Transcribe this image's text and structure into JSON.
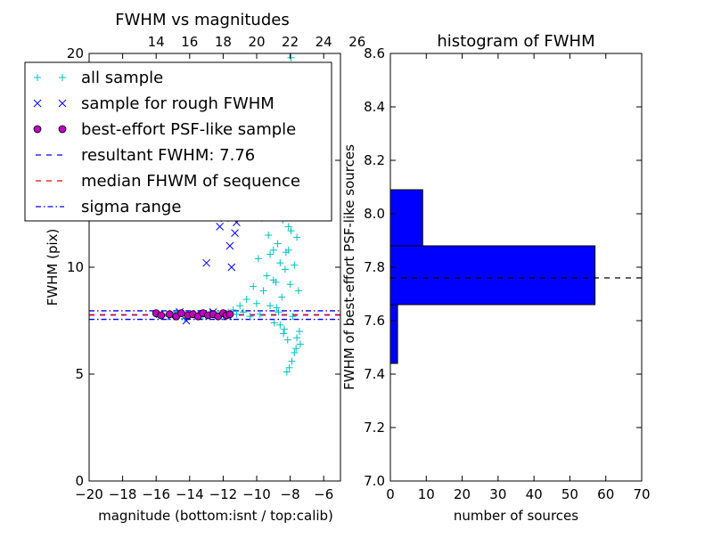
{
  "chart_data": [
    {
      "type": "scatter",
      "title": "FWHM vs magnitudes",
      "xlabel": "magnitude (bottom:isnt / top:calib)",
      "ylabel": "FWHM (pix)",
      "xlim": [
        -20,
        -5
      ],
      "ylim": [
        0,
        20
      ],
      "x_ticks": [
        -20,
        -18,
        -16,
        -14,
        -12,
        -10,
        -8,
        -6
      ],
      "x_tick_labels": [
        "−20",
        "−18",
        "−16",
        "−14",
        "−12",
        "−10",
        "−8",
        "−6"
      ],
      "y_ticks": [
        0,
        5,
        10,
        15,
        20
      ],
      "y_tick_labels": [
        "0",
        "5",
        "10",
        "15",
        "20"
      ],
      "top_x_ticks": [
        14,
        16,
        18,
        20,
        22,
        24,
        26
      ],
      "top_x_tick_labels": [
        "14",
        "16",
        "18",
        "20",
        "22",
        "24",
        "26"
      ],
      "top_axis_offset": 30,
      "grid": false,
      "legend_position": "top-left",
      "legend": [
        {
          "label": "all sample",
          "marker": "plus",
          "color": "#00bfbf"
        },
        {
          "label": "sample for rough FWHM",
          "marker": "x",
          "color": "#0000ff"
        },
        {
          "label": "best-effort PSF-like sample",
          "marker": "circle",
          "color": "#bf00bf"
        },
        {
          "label": "resultant FWHM: 7.76",
          "marker": "dashed",
          "color": "#0000ff"
        },
        {
          "label": "median FHWM of sequence",
          "marker": "dashed",
          "color": "#ff0000"
        },
        {
          "label": "sigma range",
          "marker": "dashdot",
          "color": "#0000ff"
        }
      ],
      "series": [
        {
          "name": "all sample",
          "marker": "plus",
          "color": "#00bfbf",
          "points": [
            [
              -15.9,
              7.8
            ],
            [
              -15.3,
              7.7
            ],
            [
              -14.8,
              7.9
            ],
            [
              -14.3,
              7.6
            ],
            [
              -13.7,
              7.8
            ],
            [
              -13.2,
              7.7
            ],
            [
              -12.8,
              7.9
            ],
            [
              -12.4,
              7.8
            ],
            [
              -12.0,
              7.7
            ],
            [
              -11.7,
              7.9
            ],
            [
              -11.4,
              8.0
            ],
            [
              -11.2,
              7.8
            ],
            [
              -11.0,
              8.2
            ],
            [
              -10.8,
              7.9
            ],
            [
              -10.6,
              8.5
            ],
            [
              -10.4,
              7.7
            ],
            [
              -10.2,
              9.1
            ],
            [
              -10.0,
              8.3
            ],
            [
              -9.9,
              10.4
            ],
            [
              -9.8,
              7.8
            ],
            [
              -9.7,
              12.3
            ],
            [
              -9.6,
              8.9
            ],
            [
              -9.5,
              13.7
            ],
            [
              -9.4,
              9.6
            ],
            [
              -9.3,
              11.5
            ],
            [
              -9.2,
              8.2
            ],
            [
              -9.1,
              14.6
            ],
            [
              -9.0,
              10.8
            ],
            [
              -8.95,
              7.4
            ],
            [
              -8.9,
              12.7
            ],
            [
              -8.85,
              9.3
            ],
            [
              -8.8,
              15.3
            ],
            [
              -8.75,
              11.1
            ],
            [
              -8.7,
              7.9
            ],
            [
              -8.65,
              13.4
            ],
            [
              -8.6,
              10.2
            ],
            [
              -8.55,
              16.8
            ],
            [
              -8.5,
              8.6
            ],
            [
              -8.45,
              12.2
            ],
            [
              -8.4,
              14.1
            ],
            [
              -8.35,
              7.1
            ],
            [
              -8.3,
              18.6
            ],
            [
              -8.25,
              10.7
            ],
            [
              -8.2,
              13.8
            ],
            [
              -8.15,
              6.6
            ],
            [
              -8.1,
              11.9
            ],
            [
              -8.05,
              15.6
            ],
            [
              -8.0,
              9.2
            ],
            [
              -7.95,
              19.8
            ],
            [
              -7.9,
              12.6
            ],
            [
              -7.85,
              7.7
            ],
            [
              -7.8,
              14.9
            ],
            [
              -7.75,
              10.1
            ],
            [
              -7.7,
              17.3
            ],
            [
              -7.65,
              6.2
            ],
            [
              -7.6,
              11.4
            ],
            [
              -7.55,
              13.2
            ],
            [
              -7.5,
              8.9
            ],
            [
              -7.45,
              7.0
            ],
            [
              -7.4,
              6.4
            ],
            [
              -8.2,
              5.1
            ],
            [
              -8.05,
              5.3
            ],
            [
              -7.9,
              5.6
            ],
            [
              -7.75,
              6.0
            ],
            [
              -7.6,
              6.7
            ],
            [
              -8.4,
              6.9
            ],
            [
              -8.6,
              7.3
            ],
            [
              -8.8,
              8.1
            ],
            [
              -9.0,
              9.4
            ],
            [
              -9.2,
              10.6
            ],
            [
              -8.3,
              9.9
            ],
            [
              -8.1,
              10.8
            ],
            [
              -7.95,
              11.7
            ],
            [
              -8.45,
              12.9
            ],
            [
              -8.25,
              15.1
            ],
            [
              -8.0,
              16.4
            ],
            [
              -7.85,
              17.9
            ],
            [
              -8.15,
              19.3
            ]
          ]
        },
        {
          "name": "sample for rough FWHM",
          "marker": "x",
          "color": "#0000ff",
          "points": [
            [
              -15.8,
              7.8
            ],
            [
              -15.1,
              7.7
            ],
            [
              -14.6,
              7.9
            ],
            [
              -14.2,
              7.5
            ],
            [
              -13.6,
              7.8
            ],
            [
              -13.0,
              10.2
            ],
            [
              -12.6,
              7.9
            ],
            [
              -12.2,
              11.9
            ],
            [
              -11.9,
              12.3
            ],
            [
              -11.7,
              7.7
            ],
            [
              -11.6,
              11.0
            ],
            [
              -11.5,
              10.0
            ],
            [
              -11.3,
              11.6
            ],
            [
              -11.2,
              12.1
            ]
          ]
        },
        {
          "name": "best-effort PSF-like sample",
          "marker": "circle",
          "color": "#bf00bf",
          "points": [
            [
              -16.0,
              7.85
            ],
            [
              -15.7,
              7.75
            ],
            [
              -15.2,
              7.8
            ],
            [
              -14.8,
              7.7
            ],
            [
              -14.5,
              7.85
            ],
            [
              -14.1,
              7.75
            ],
            [
              -13.8,
              7.8
            ],
            [
              -13.5,
              7.7
            ],
            [
              -13.2,
              7.85
            ],
            [
              -12.9,
              7.75
            ],
            [
              -12.6,
              7.8
            ],
            [
              -12.3,
              7.7
            ],
            [
              -12.0,
              7.85
            ],
            [
              -11.8,
              7.75
            ],
            [
              -11.6,
              7.8
            ]
          ]
        }
      ],
      "reference_lines": [
        {
          "name": "resultant FWHM: 7.76",
          "y": 7.76,
          "style": "dashed",
          "color": "#0000ff"
        },
        {
          "name": "median FHWM of sequence",
          "y": 7.78,
          "style": "dashed",
          "color": "#ff0000"
        },
        {
          "name": "sigma range",
          "y": 7.56,
          "style": "dashdot",
          "color": "#0000ff"
        },
        {
          "name": "sigma range",
          "y": 7.96,
          "style": "dashdot",
          "color": "#0000ff"
        }
      ]
    },
    {
      "type": "bar",
      "orientation": "horizontal",
      "title": "histogram of FWHM",
      "xlabel": "number of sources",
      "ylabel": "FWHM of best-effort PSF-like sources",
      "xlim": [
        0,
        70
      ],
      "ylim": [
        7.0,
        8.6
      ],
      "x_ticks": [
        0,
        10,
        20,
        30,
        40,
        50,
        60,
        70
      ],
      "x_tick_labels": [
        "0",
        "10",
        "20",
        "30",
        "40",
        "50",
        "60",
        "70"
      ],
      "y_ticks": [
        7.0,
        7.2,
        7.4,
        7.6,
        7.8,
        8.0,
        8.2,
        8.4,
        8.6
      ],
      "y_tick_labels": [
        "7.0",
        "7.2",
        "7.4",
        "7.6",
        "7.8",
        "8.0",
        "8.2",
        "8.4",
        "8.6"
      ],
      "grid": false,
      "bar_color": "#0000ff",
      "bins": [
        {
          "y_low": 7.44,
          "y_high": 7.66,
          "count": 2
        },
        {
          "y_low": 7.66,
          "y_high": 7.88,
          "count": 57
        },
        {
          "y_low": 7.88,
          "y_high": 8.09,
          "count": 9
        }
      ],
      "reference_lines": [
        {
          "y": 7.76,
          "style": "dashed",
          "color": "#000000"
        }
      ]
    }
  ]
}
